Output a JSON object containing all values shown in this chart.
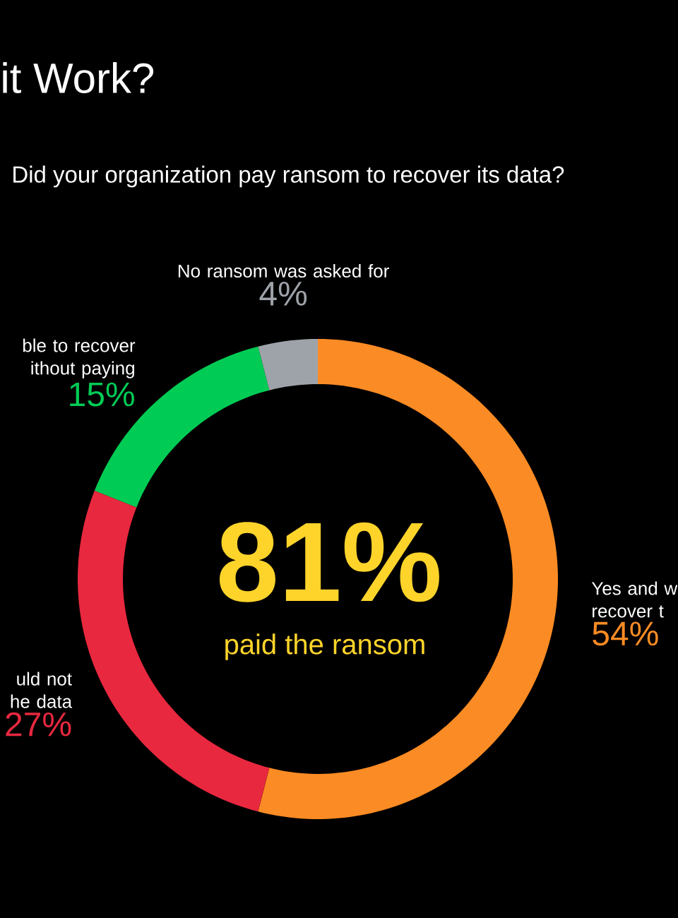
{
  "chart_data": {
    "type": "donut",
    "title": "it Work?",
    "subtitle": "Did your organization pay ransom to recover its data?",
    "categories": [
      "Yes and w recover t",
      "uld not he data",
      "ble to recover ithout paying",
      "No ransom was asked for"
    ],
    "values": [
      54,
      27,
      15,
      4
    ],
    "value_labels": [
      "54%",
      "27%",
      "15%",
      "4%"
    ],
    "colors": [
      "#fb8b24",
      "#e8283f",
      "#00cc55",
      "#9ea3a9"
    ],
    "annotations": [
      "81%",
      "paid the ransom"
    ]
  }
}
